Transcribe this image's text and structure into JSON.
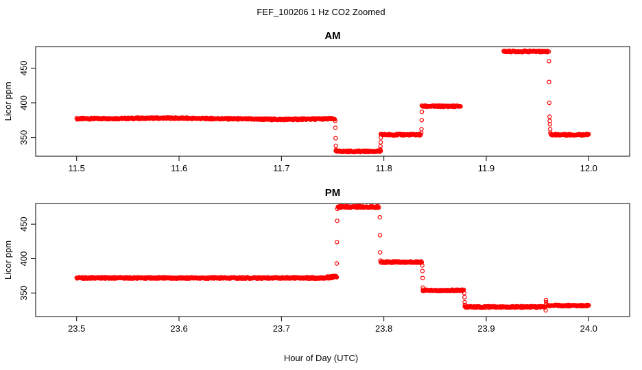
{
  "figure": {
    "title": "FEF_100206  1 Hz CO2 Zoomed",
    "xlabel": "Hour of Day (UTC)"
  },
  "colors": {
    "points": "#ff0000",
    "axes": "#000000",
    "background": "#ffffff"
  },
  "chart_data": [
    {
      "type": "scatter",
      "title": "AM",
      "xlabel": "",
      "ylabel": "Licor ppm",
      "xlim": [
        11.46,
        12.04
      ],
      "ylim": [
        323,
        481
      ],
      "xticks": [
        "11.5",
        "11.6",
        "11.7",
        "11.8",
        "11.9",
        "12.0"
      ],
      "yticks": [
        "350",
        "400",
        "450"
      ],
      "grid": false,
      "marker": "open-circle",
      "segments": [
        {
          "x": [
            11.5,
            11.59,
            11.7,
            11.752
          ],
          "y": [
            377,
            378,
            376,
            377
          ]
        },
        {
          "x": [
            11.753,
            11.797
          ],
          "y": [
            330,
            330
          ]
        },
        {
          "x": [
            11.797,
            11.836
          ],
          "y": [
            354,
            354
          ]
        },
        {
          "x": [
            11.837,
            11.875
          ],
          "y": [
            395,
            395
          ]
        },
        {
          "x": [
            11.917,
            11.96
          ],
          "y": [
            474,
            474
          ]
        },
        {
          "x": [
            11.963,
            12.0
          ],
          "y": [
            354,
            354
          ]
        }
      ],
      "transitions": [
        {
          "x": 11.7525,
          "y": [
            374,
            364,
            349,
            338,
            332
          ]
        },
        {
          "x": 11.7965,
          "y": [
            333,
            337,
            343,
            350
          ]
        },
        {
          "x": 11.8365,
          "y": [
            357,
            362,
            375,
            387
          ]
        },
        {
          "x": 11.961,
          "y": [
            474,
            460,
            430,
            400,
            380,
            374,
            369,
            362,
            357
          ]
        }
      ]
    },
    {
      "type": "scatter",
      "title": "PM",
      "xlabel": "",
      "ylabel": "Licor ppm",
      "xlim": [
        23.46,
        24.04
      ],
      "ylim": [
        316,
        480
      ],
      "xticks": [
        "23.5",
        "23.6",
        "23.7",
        "23.8",
        "23.9",
        "24.0"
      ],
      "yticks": [
        "350",
        "400",
        "450"
      ],
      "grid": false,
      "marker": "open-circle",
      "segments": [
        {
          "x": [
            23.5,
            23.6,
            23.75
          ],
          "y": [
            372,
            372,
            372
          ]
        },
        {
          "x": [
            23.745,
            23.754
          ],
          "y": [
            374,
            374
          ]
        },
        {
          "x": [
            23.755,
            23.795
          ],
          "y": [
            475,
            475
          ]
        },
        {
          "x": [
            23.797,
            23.837
          ],
          "y": [
            395,
            395
          ]
        },
        {
          "x": [
            23.838,
            23.878
          ],
          "y": [
            354,
            354
          ]
        },
        {
          "x": [
            23.879,
            23.957
          ],
          "y": [
            330,
            330
          ]
        },
        {
          "x": [
            23.96,
            24.0
          ],
          "y": [
            332,
            332
          ]
        }
      ],
      "transitions": [
        {
          "x": 23.754,
          "y": [
            393,
            424,
            455,
            472
          ]
        },
        {
          "x": 23.796,
          "y": [
            460,
            434,
            409,
            397
          ]
        },
        {
          "x": 23.8375,
          "y": [
            390,
            382,
            372,
            358,
            355
          ]
        },
        {
          "x": 23.8785,
          "y": [
            350,
            344,
            337,
            333
          ]
        },
        {
          "x": 23.958,
          "y": [
            325,
            340,
            337,
            334
          ]
        }
      ]
    }
  ]
}
